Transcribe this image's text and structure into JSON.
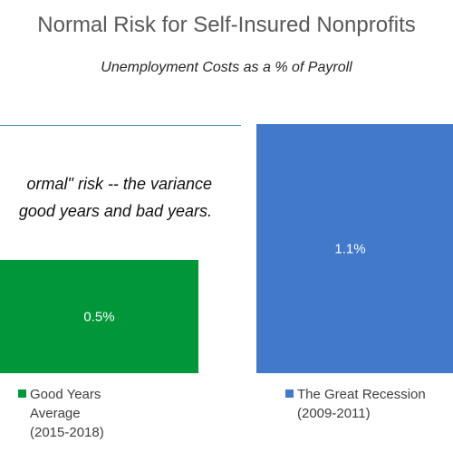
{
  "colors": {
    "good_years": "#00973A",
    "great_recession": "#4279C8",
    "annotation_rule": "#4A8FB5",
    "bar_label": "#FFFFFF"
  },
  "annotation": {
    "line1": "ormal\" risk -- the variance",
    "line2": "good years and bad years."
  },
  "chart_data": {
    "type": "bar",
    "title": "Normal Risk for Self-Insured Nonprofits",
    "subtitle": "Unemployment Costs as a % of Payroll",
    "xlabel": "",
    "ylabel": "",
    "ylim": [
      0,
      1.2
    ],
    "grid": false,
    "legend_position": "bottom",
    "series": [
      {
        "name": "Good Years Average (2015-2018)",
        "values": [
          0.5
        ],
        "label": "0.5%",
        "color": "#00973A"
      },
      {
        "name": "The Great Recession (2009-2011)",
        "values": [
          1.1
        ],
        "label": "1.1%",
        "color": "#4279C8"
      }
    ],
    "legend": [
      {
        "text": "Good Years\nAverage\n(2015-2018)",
        "color": "#00973A"
      },
      {
        "text": "The Great Recession\n(2009-2011)",
        "color": "#4279C8"
      }
    ]
  }
}
